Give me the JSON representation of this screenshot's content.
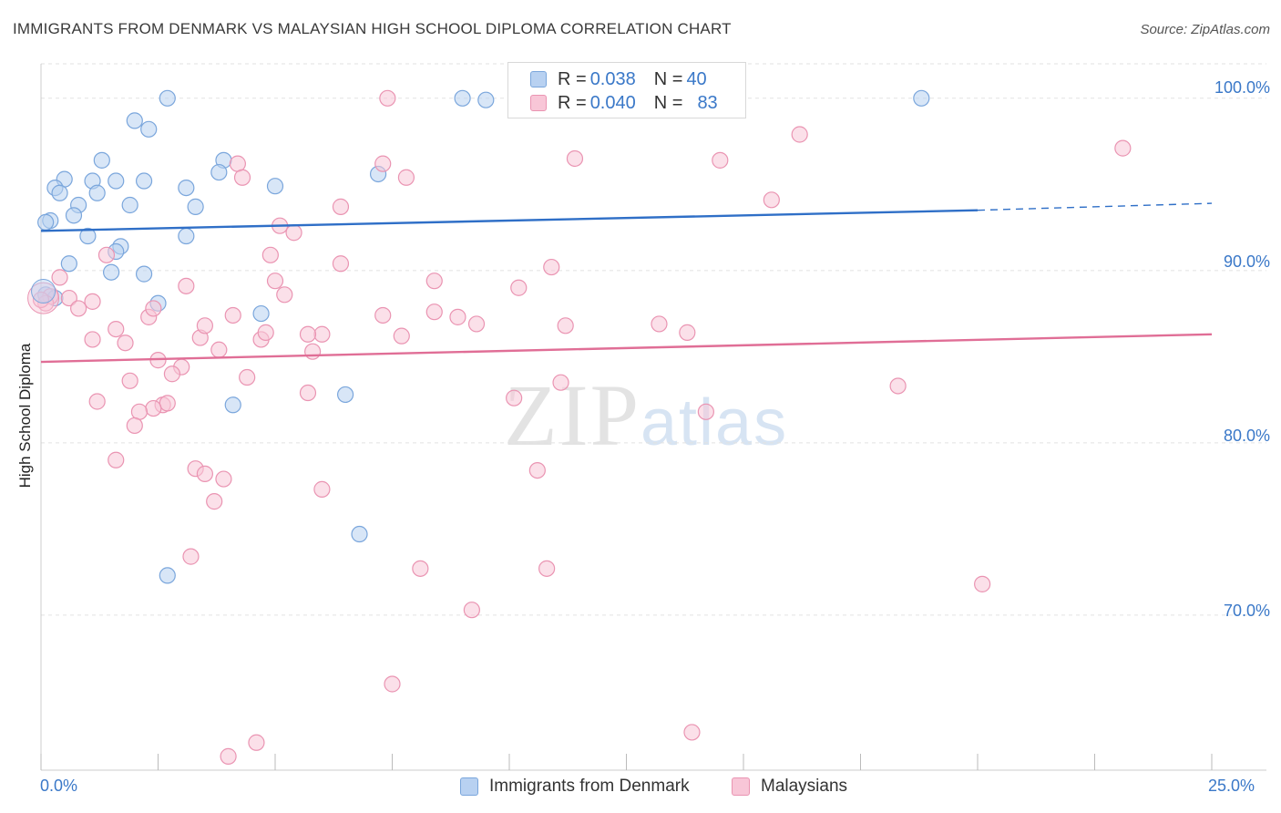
{
  "header": {
    "title": "IMMIGRANTS FROM DENMARK VS MALAYSIAN HIGH SCHOOL DIPLOMA CORRELATION CHART",
    "source": "Source: ZipAtlas.com"
  },
  "watermark": {
    "zip": "ZIP",
    "atlas": "atlas"
  },
  "legend": {
    "rows": [
      {
        "r_label": "R = ",
        "r_value": "0.038",
        "n_label": "N = ",
        "n_value": "40"
      },
      {
        "r_label": "R = ",
        "r_value": "0.040",
        "n_label": "N = ",
        "n_value": "83"
      }
    ]
  },
  "bottom_legend": [
    "Immigrants from Denmark",
    "Malaysians"
  ],
  "colors": {
    "blue_fill": "#b8d1f1",
    "blue_stroke": "#7aa6dc",
    "blue_line": "#2f6fc7",
    "pink_fill": "#f8c6d7",
    "pink_stroke": "#ea94b2",
    "pink_line": "#e06e96",
    "grid": "#e2e2e2",
    "axis_text": "#3a78c8"
  },
  "chart_data": {
    "type": "scatter",
    "title": "IMMIGRANTS FROM DENMARK VS MALAYSIAN HIGH SCHOOL DIPLOMA CORRELATION CHART",
    "xlabel": "",
    "ylabel": "High School Diploma",
    "xlim": [
      0,
      25
    ],
    "ylim": [
      61,
      102
    ],
    "x_tick_labels": [
      "0.0%",
      "25.0%"
    ],
    "y_ticks": [
      70,
      80,
      90,
      100
    ],
    "y_tick_labels": [
      "70.0%",
      "80.0%",
      "90.0%",
      "100.0%"
    ],
    "grid": true,
    "legend_position": "top-center",
    "series": [
      {
        "name": "Immigrants from Denmark",
        "color": "#7aa6dc",
        "R": 0.038,
        "N": 40,
        "trend": {
          "x": [
            0,
            20
          ],
          "y": [
            92.3,
            93.5
          ],
          "dashed_extension_to": [
            25,
            93.9
          ]
        },
        "points": [
          [
            2.7,
            100.0
          ],
          [
            9.0,
            100.0
          ],
          [
            18.8,
            100.0
          ],
          [
            2.0,
            98.7
          ],
          [
            2.3,
            98.2
          ],
          [
            1.3,
            96.4
          ],
          [
            3.9,
            96.4
          ],
          [
            3.8,
            95.7
          ],
          [
            7.2,
            95.6
          ],
          [
            0.5,
            95.3
          ],
          [
            1.1,
            95.2
          ],
          [
            1.6,
            95.2
          ],
          [
            2.2,
            95.2
          ],
          [
            5.0,
            94.9
          ],
          [
            0.3,
            94.8
          ],
          [
            3.1,
            94.8
          ],
          [
            0.4,
            94.5
          ],
          [
            1.2,
            94.5
          ],
          [
            0.8,
            93.8
          ],
          [
            1.9,
            93.8
          ],
          [
            3.3,
            93.7
          ],
          [
            0.2,
            92.9
          ],
          [
            0.1,
            92.8
          ],
          [
            0.7,
            93.2
          ],
          [
            1.0,
            92.0
          ],
          [
            3.1,
            92.0
          ],
          [
            1.7,
            91.4
          ],
          [
            1.6,
            91.1
          ],
          [
            0.6,
            90.4
          ],
          [
            2.2,
            89.8
          ],
          [
            1.5,
            89.9
          ],
          [
            0.1,
            88.6
          ],
          [
            0.3,
            88.4
          ],
          [
            2.5,
            88.1
          ],
          [
            4.7,
            87.5
          ],
          [
            4.1,
            82.2
          ],
          [
            6.5,
            82.8
          ],
          [
            6.8,
            74.7
          ],
          [
            2.7,
            72.3
          ],
          [
            9.5,
            99.9
          ]
        ]
      },
      {
        "name": "Malaysians",
        "color": "#ea94b2",
        "R": 0.04,
        "N": 83,
        "trend": {
          "x": [
            0,
            25
          ],
          "y": [
            84.7,
            86.3
          ]
        },
        "points": [
          [
            7.4,
            100.0
          ],
          [
            16.2,
            97.9
          ],
          [
            23.1,
            97.1
          ],
          [
            11.4,
            96.5
          ],
          [
            14.5,
            96.4
          ],
          [
            4.2,
            96.2
          ],
          [
            7.3,
            96.2
          ],
          [
            4.3,
            95.4
          ],
          [
            7.8,
            95.4
          ],
          [
            15.6,
            94.1
          ],
          [
            6.4,
            93.7
          ],
          [
            5.1,
            92.6
          ],
          [
            5.4,
            92.2
          ],
          [
            4.9,
            90.9
          ],
          [
            1.4,
            90.9
          ],
          [
            6.4,
            90.4
          ],
          [
            10.9,
            90.2
          ],
          [
            0.4,
            89.6
          ],
          [
            8.4,
            89.4
          ],
          [
            5.0,
            89.4
          ],
          [
            3.1,
            89.1
          ],
          [
            10.2,
            89.0
          ],
          [
            5.2,
            88.6
          ],
          [
            0.2,
            88.5
          ],
          [
            0.6,
            88.4
          ],
          [
            0.1,
            88.1
          ],
          [
            1.1,
            88.2
          ],
          [
            0.8,
            87.8
          ],
          [
            2.3,
            87.3
          ],
          [
            4.1,
            87.4
          ],
          [
            7.3,
            87.4
          ],
          [
            8.4,
            87.6
          ],
          [
            8.9,
            87.3
          ],
          [
            9.3,
            86.9
          ],
          [
            11.2,
            86.8
          ],
          [
            13.2,
            86.9
          ],
          [
            13.8,
            86.4
          ],
          [
            1.6,
            86.6
          ],
          [
            1.1,
            86.0
          ],
          [
            3.4,
            86.1
          ],
          [
            4.7,
            86.0
          ],
          [
            4.8,
            86.4
          ],
          [
            6.0,
            86.3
          ],
          [
            7.7,
            86.2
          ],
          [
            1.8,
            85.8
          ],
          [
            3.8,
            85.4
          ],
          [
            5.8,
            85.3
          ],
          [
            2.5,
            84.8
          ],
          [
            3.0,
            84.4
          ],
          [
            2.8,
            84.0
          ],
          [
            4.4,
            83.8
          ],
          [
            1.9,
            83.6
          ],
          [
            11.1,
            83.5
          ],
          [
            18.3,
            83.3
          ],
          [
            5.7,
            82.9
          ],
          [
            10.1,
            82.6
          ],
          [
            1.2,
            82.4
          ],
          [
            2.6,
            82.2
          ],
          [
            2.7,
            82.3
          ],
          [
            2.4,
            82.0
          ],
          [
            14.2,
            81.8
          ],
          [
            2.1,
            81.8
          ],
          [
            2.0,
            81.0
          ],
          [
            1.6,
            79.0
          ],
          [
            3.3,
            78.5
          ],
          [
            3.5,
            78.2
          ],
          [
            3.9,
            77.9
          ],
          [
            10.6,
            78.4
          ],
          [
            6.0,
            77.3
          ],
          [
            3.7,
            76.6
          ],
          [
            3.2,
            73.4
          ],
          [
            8.1,
            72.7
          ],
          [
            10.8,
            72.7
          ],
          [
            20.1,
            71.8
          ],
          [
            9.2,
            70.3
          ],
          [
            7.5,
            66.0
          ],
          [
            13.9,
            63.2
          ],
          [
            4.6,
            62.6
          ],
          [
            4.0,
            61.8
          ],
          [
            0.0,
            88.3
          ],
          [
            5.7,
            86.3
          ],
          [
            3.5,
            86.8
          ],
          [
            2.4,
            87.8
          ]
        ]
      }
    ]
  }
}
